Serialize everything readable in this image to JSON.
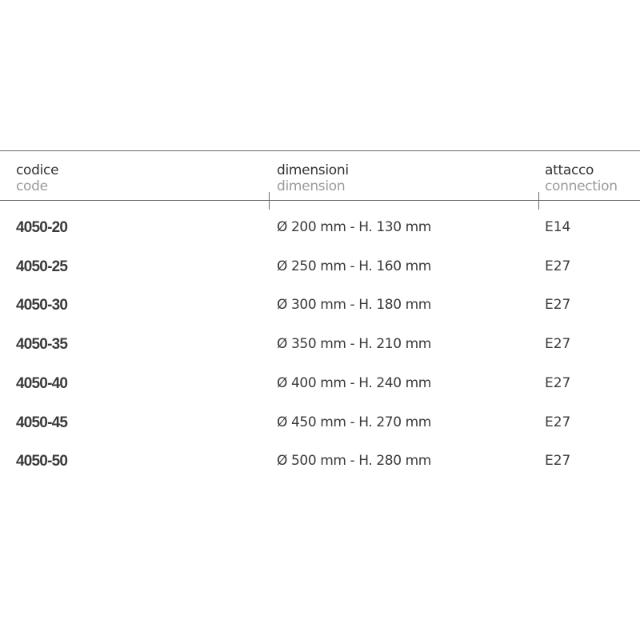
{
  "headers": [
    {
      "it": "codice",
      "en": "code"
    },
    {
      "it": "dimensioni",
      "en": "dimension"
    },
    {
      "it": "attacco",
      "en": "connection"
    }
  ],
  "rows": [
    {
      "code": "4050-20",
      "dimension": "Ø 200 mm - H. 130 mm",
      "connection": "E14"
    },
    {
      "code": "4050-25",
      "dimension": "Ø 250 mm - H. 160 mm",
      "connection": "E27"
    },
    {
      "code": "4050-30",
      "dimension": "Ø 300 mm - H. 180 mm",
      "connection": "E27"
    },
    {
      "code": "4050-35",
      "dimension": "Ø 350 mm - H. 210 mm",
      "connection": "E27"
    },
    {
      "code": "4050-40",
      "dimension": "Ø 400 mm - H. 240 mm",
      "connection": "E27"
    },
    {
      "code": "4050-45",
      "dimension": "Ø 450 mm - H. 270 mm",
      "connection": "E27"
    },
    {
      "code": "4050-50",
      "dimension": "Ø 500 mm - H. 280 mm",
      "connection": "E27"
    }
  ]
}
